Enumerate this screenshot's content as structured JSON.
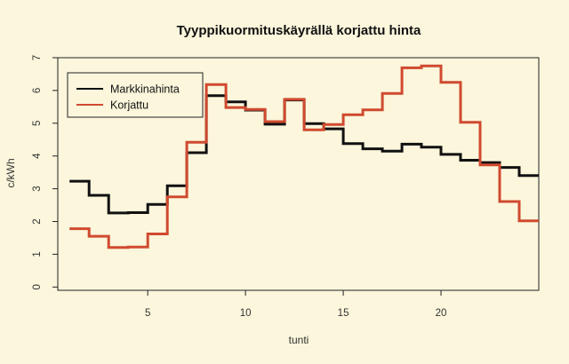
{
  "chart_data": {
    "type": "line",
    "title": "Tyyppikuormituskäyrällä korjattu hinta",
    "xlabel": "tunti",
    "ylabel": "c/kWh",
    "xlim": [
      0.4,
      25
    ],
    "ylim": [
      -0.1,
      7.0
    ],
    "x_ticks": [
      5,
      10,
      15,
      20
    ],
    "y_ticks": [
      0,
      1,
      2,
      3,
      4,
      5,
      6,
      7
    ],
    "x": [
      1,
      2,
      3,
      4,
      5,
      6,
      7,
      8,
      9,
      10,
      11,
      12,
      13,
      14,
      15,
      16,
      17,
      18,
      19,
      20,
      21,
      22,
      23,
      24
    ],
    "step_end": 25,
    "legend_position": "top-left",
    "series": [
      {
        "name": "Markkinahinta",
        "color": "#111111",
        "values": [
          3.23,
          2.8,
          2.26,
          2.27,
          2.52,
          3.09,
          4.1,
          5.84,
          5.65,
          5.4,
          4.97,
          5.71,
          4.99,
          4.83,
          4.38,
          4.22,
          4.15,
          4.36,
          4.27,
          4.05,
          3.87,
          3.8,
          3.65,
          3.4
        ]
      },
      {
        "name": "Korjattu",
        "color": "#d04a2f",
        "values": [
          1.78,
          1.55,
          1.21,
          1.22,
          1.62,
          2.75,
          4.42,
          6.18,
          5.48,
          5.42,
          5.05,
          5.73,
          4.8,
          4.96,
          5.26,
          5.41,
          5.91,
          6.69,
          6.75,
          6.25,
          5.03,
          3.73,
          2.61,
          2.02
        ]
      }
    ]
  }
}
